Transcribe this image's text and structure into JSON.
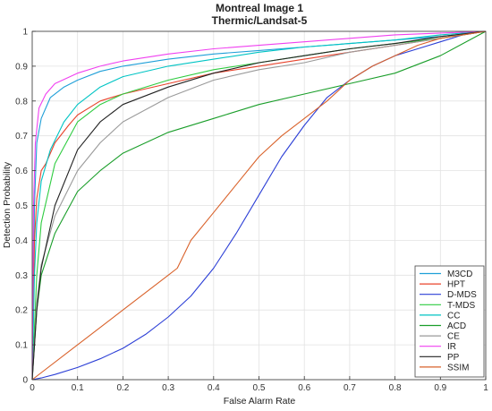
{
  "chart_data": {
    "type": "line",
    "title": "Montreal Image 1",
    "subtitle": "Thermic/Landsat-5",
    "xlabel": "False Alarm Rate",
    "ylabel": "Detection Probability",
    "xlim": [
      0,
      1
    ],
    "ylim": [
      0,
      1
    ],
    "xticks": [
      "0",
      "0.1",
      "0.2",
      "0.3",
      "0.4",
      "0.5",
      "0.6",
      "0.7",
      "0.8",
      "0.9",
      "1"
    ],
    "yticks": [
      "0",
      "0.1",
      "0.2",
      "0.3",
      "0.4",
      "0.5",
      "0.6",
      "0.7",
      "0.8",
      "0.9",
      "1"
    ],
    "grid": true,
    "legend_position": "bottom-right",
    "series": [
      {
        "name": "M3CD",
        "color": "#1f9fd8",
        "x": [
          0,
          0.005,
          0.01,
          0.02,
          0.04,
          0.07,
          0.1,
          0.15,
          0.2,
          0.3,
          0.4,
          0.5,
          0.6,
          0.7,
          0.8,
          0.9,
          1
        ],
        "y": [
          0,
          0.5,
          0.68,
          0.75,
          0.81,
          0.84,
          0.86,
          0.885,
          0.9,
          0.92,
          0.935,
          0.945,
          0.955,
          0.965,
          0.975,
          0.985,
          1
        ]
      },
      {
        "name": "HPT",
        "color": "#e8432c",
        "x": [
          0,
          0.005,
          0.01,
          0.02,
          0.03,
          0.05,
          0.08,
          0.1,
          0.15,
          0.2,
          0.3,
          0.4,
          0.5,
          0.6,
          0.7,
          0.8,
          0.9,
          1
        ],
        "y": [
          0,
          0.4,
          0.52,
          0.6,
          0.62,
          0.68,
          0.73,
          0.76,
          0.8,
          0.82,
          0.85,
          0.88,
          0.9,
          0.92,
          0.94,
          0.96,
          0.98,
          1
        ]
      },
      {
        "name": "D-MDS",
        "color": "#2c3fd6",
        "x": [
          0,
          0.02,
          0.05,
          0.1,
          0.15,
          0.2,
          0.25,
          0.3,
          0.35,
          0.4,
          0.45,
          0.5,
          0.55,
          0.6,
          0.65,
          0.7,
          0.75,
          0.8,
          0.85,
          0.9,
          0.95,
          1
        ],
        "y": [
          0,
          0.005,
          0.015,
          0.035,
          0.06,
          0.09,
          0.13,
          0.18,
          0.24,
          0.32,
          0.42,
          0.53,
          0.64,
          0.73,
          0.81,
          0.86,
          0.9,
          0.93,
          0.95,
          0.97,
          0.99,
          1
        ]
      },
      {
        "name": "T-MDS",
        "color": "#2ecc40",
        "x": [
          0,
          0.01,
          0.02,
          0.05,
          0.1,
          0.15,
          0.2,
          0.3,
          0.4,
          0.5,
          0.6,
          0.7,
          0.8,
          0.9,
          1
        ],
        "y": [
          0,
          0.3,
          0.45,
          0.62,
          0.74,
          0.79,
          0.82,
          0.86,
          0.89,
          0.91,
          0.93,
          0.95,
          0.965,
          0.98,
          1
        ]
      },
      {
        "name": "CC",
        "color": "#00c4c4",
        "x": [
          0,
          0.005,
          0.01,
          0.02,
          0.04,
          0.07,
          0.1,
          0.15,
          0.2,
          0.3,
          0.4,
          0.5,
          0.6,
          0.7,
          0.8,
          0.9,
          1
        ],
        "y": [
          0,
          0.3,
          0.45,
          0.57,
          0.66,
          0.74,
          0.79,
          0.84,
          0.87,
          0.9,
          0.92,
          0.94,
          0.955,
          0.965,
          0.975,
          0.99,
          1
        ]
      },
      {
        "name": "ACD",
        "color": "#1a9e2a",
        "x": [
          0,
          0.01,
          0.02,
          0.05,
          0.1,
          0.15,
          0.2,
          0.3,
          0.4,
          0.5,
          0.6,
          0.7,
          0.8,
          0.9,
          1
        ],
        "y": [
          0,
          0.2,
          0.3,
          0.42,
          0.54,
          0.6,
          0.65,
          0.71,
          0.75,
          0.79,
          0.82,
          0.85,
          0.88,
          0.93,
          1
        ]
      },
      {
        "name": "CE",
        "color": "#9a9a9a",
        "x": [
          0,
          0.01,
          0.02,
          0.05,
          0.1,
          0.15,
          0.2,
          0.3,
          0.4,
          0.5,
          0.6,
          0.7,
          0.8,
          0.9,
          1
        ],
        "y": [
          0,
          0.22,
          0.33,
          0.47,
          0.6,
          0.68,
          0.74,
          0.81,
          0.86,
          0.89,
          0.91,
          0.94,
          0.96,
          0.98,
          1
        ]
      },
      {
        "name": "IR",
        "color": "#f040f0",
        "x": [
          0,
          0.003,
          0.007,
          0.015,
          0.03,
          0.05,
          0.1,
          0.15,
          0.2,
          0.3,
          0.4,
          0.5,
          0.6,
          0.7,
          0.8,
          0.9,
          1
        ],
        "y": [
          0,
          0.5,
          0.68,
          0.78,
          0.82,
          0.85,
          0.88,
          0.9,
          0.915,
          0.935,
          0.95,
          0.96,
          0.97,
          0.98,
          0.99,
          0.995,
          1
        ]
      },
      {
        "name": "PP",
        "color": "#222222",
        "x": [
          0,
          0.01,
          0.02,
          0.05,
          0.1,
          0.15,
          0.2,
          0.3,
          0.4,
          0.5,
          0.6,
          0.7,
          0.8,
          0.9,
          1
        ],
        "y": [
          0,
          0.2,
          0.32,
          0.5,
          0.66,
          0.74,
          0.79,
          0.84,
          0.88,
          0.91,
          0.93,
          0.95,
          0.965,
          0.985,
          1
        ]
      },
      {
        "name": "SSIM",
        "color": "#d9622b",
        "x": [
          0,
          0.1,
          0.2,
          0.3,
          0.32,
          0.35,
          0.4,
          0.45,
          0.5,
          0.55,
          0.6,
          0.65,
          0.7,
          0.75,
          0.8,
          0.85,
          0.9,
          0.95,
          1
        ],
        "y": [
          0,
          0.1,
          0.2,
          0.3,
          0.32,
          0.4,
          0.48,
          0.56,
          0.64,
          0.7,
          0.75,
          0.8,
          0.86,
          0.9,
          0.93,
          0.96,
          0.98,
          0.99,
          1
        ]
      }
    ]
  }
}
